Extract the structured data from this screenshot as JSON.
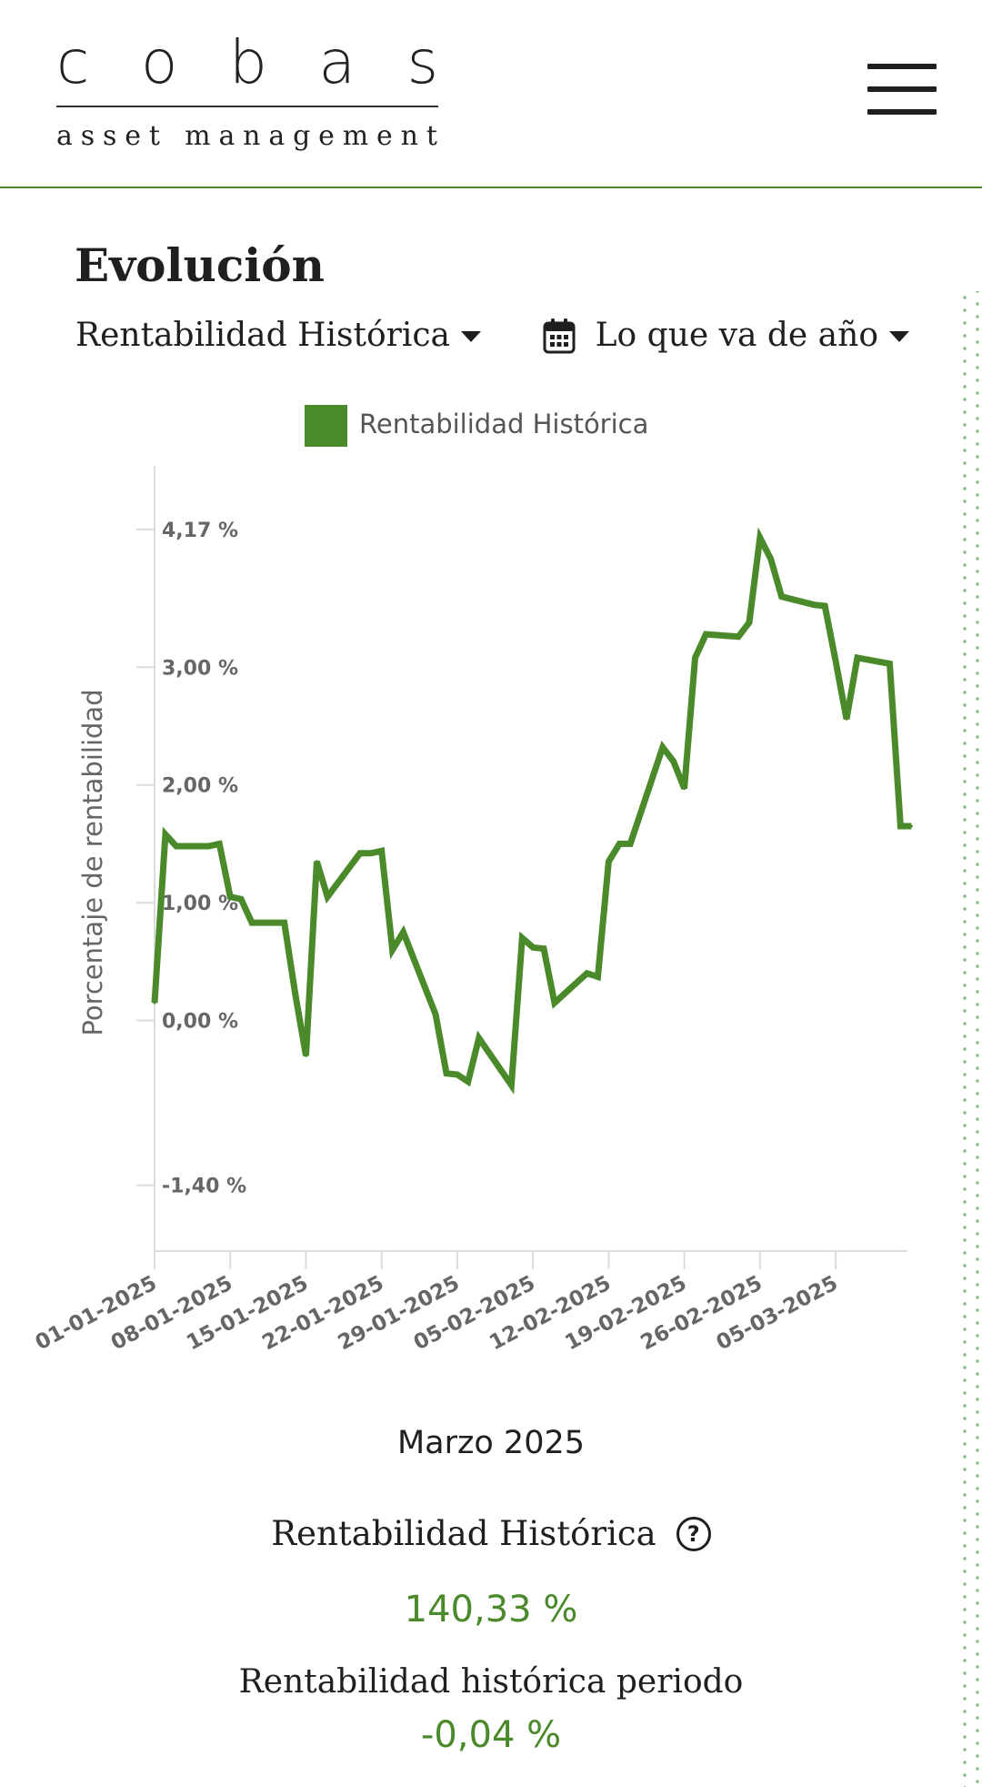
{
  "header": {
    "logo_letters": [
      "c",
      "o",
      "b",
      "a",
      "s"
    ],
    "logo_sub_letters": [
      "a",
      "s",
      "s",
      "e",
      "t",
      " ",
      "m",
      "a",
      "n",
      "a",
      "g",
      "e",
      "m",
      "e",
      "n",
      "t"
    ],
    "menu_icon": "hamburger-menu-icon"
  },
  "section": {
    "title": "Evolución",
    "metric_dropdown": "Rentabilidad Histórica",
    "period_dropdown": "Lo que va de año",
    "period_icon": "calendar-icon"
  },
  "colors": {
    "accent": "#4a8a2a",
    "text": "#1f1f1f",
    "axis_text": "#666666",
    "rail_dots": "#8fc08c"
  },
  "chart_data": {
    "type": "line",
    "legend": {
      "label": "Rentabilidad Histórica",
      "placement": "top-center"
    },
    "ylabel": "Porcentaje de rentabilidad",
    "xlabel": "",
    "yticks": [
      {
        "value": 4.17,
        "label": "4,17 %"
      },
      {
        "value": 3.0,
        "label": "3,00 %"
      },
      {
        "value": 2.0,
        "label": "2,00 %"
      },
      {
        "value": 1.0,
        "label": "1,00 %"
      },
      {
        "value": 0.0,
        "label": "0,00 %"
      },
      {
        "value": -1.4,
        "label": "-1,40 %"
      }
    ],
    "ylim": [
      -1.95,
      4.75
    ],
    "xticks": [
      "01-01-2025",
      "08-01-2025",
      "15-01-2025",
      "22-01-2025",
      "29-01-2025",
      "05-02-2025",
      "12-02-2025",
      "19-02-2025",
      "26-02-2025",
      "05-03-2025"
    ],
    "xrange": [
      "01-01-2025",
      "12-03-2025"
    ],
    "series": [
      {
        "name": "Rentabilidad Histórica",
        "color": "#4a8a2a",
        "points": [
          [
            "01-01-2025",
            0.15
          ],
          [
            "02-01-2025",
            1.58
          ],
          [
            "03-01-2025",
            1.48
          ],
          [
            "06-01-2025",
            1.48
          ],
          [
            "07-01-2025",
            1.5
          ],
          [
            "08-01-2025",
            1.05
          ],
          [
            "09-01-2025",
            1.03
          ],
          [
            "10-01-2025",
            0.83
          ],
          [
            "13-01-2025",
            0.83
          ],
          [
            "14-01-2025",
            0.23
          ],
          [
            "15-01-2025",
            -0.3
          ],
          [
            "16-01-2025",
            1.35
          ],
          [
            "17-01-2025",
            1.05
          ],
          [
            "20-01-2025",
            1.42
          ],
          [
            "21-01-2025",
            1.42
          ],
          [
            "22-01-2025",
            1.44
          ],
          [
            "23-01-2025",
            0.6
          ],
          [
            "24-01-2025",
            0.75
          ],
          [
            "27-01-2025",
            0.05
          ],
          [
            "28-01-2025",
            -0.45
          ],
          [
            "29-01-2025",
            -0.46
          ],
          [
            "30-01-2025",
            -0.52
          ],
          [
            "31-01-2025",
            -0.15
          ],
          [
            "03-02-2025",
            -0.55
          ],
          [
            "04-02-2025",
            0.7
          ],
          [
            "05-02-2025",
            0.62
          ],
          [
            "06-02-2025",
            0.61
          ],
          [
            "07-02-2025",
            0.15
          ],
          [
            "10-02-2025",
            0.4
          ],
          [
            "11-02-2025",
            0.37
          ],
          [
            "12-02-2025",
            1.35
          ],
          [
            "13-02-2025",
            1.5
          ],
          [
            "14-02-2025",
            1.5
          ],
          [
            "17-02-2025",
            2.32
          ],
          [
            "18-02-2025",
            2.2
          ],
          [
            "19-02-2025",
            1.97
          ],
          [
            "20-02-2025",
            3.08
          ],
          [
            "21-02-2025",
            3.28
          ],
          [
            "24-02-2025",
            3.26
          ],
          [
            "25-02-2025",
            3.38
          ],
          [
            "26-02-2025",
            4.1
          ],
          [
            "27-02-2025",
            3.92
          ],
          [
            "28-02-2025",
            3.6
          ],
          [
            "03-03-2025",
            3.53
          ],
          [
            "04-03-2025",
            3.52
          ],
          [
            "05-03-2025",
            3.05
          ],
          [
            "06-03-2025",
            2.56
          ],
          [
            "07-03-2025",
            3.08
          ],
          [
            "10-03-2025",
            3.03
          ],
          [
            "11-03-2025",
            1.65
          ],
          [
            "12-03-2025",
            1.65
          ]
        ]
      }
    ]
  },
  "stats": {
    "period_label": "Marzo 2025",
    "hist_label": "Rentabilidad Histórica",
    "help_symbol": "?",
    "hist_value": "140,33 %",
    "period_title": "Rentabilidad histórica periodo",
    "period_value": "-0,04 %"
  }
}
